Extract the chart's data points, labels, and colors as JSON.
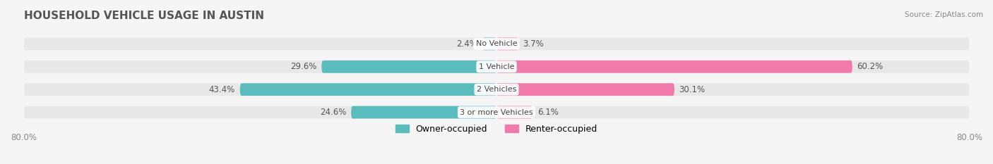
{
  "title": "HOUSEHOLD VEHICLE USAGE IN AUSTIN",
  "source": "Source: ZipAtlas.com",
  "categories": [
    "No Vehicle",
    "1 Vehicle",
    "2 Vehicles",
    "3 or more Vehicles"
  ],
  "owner_values": [
    2.4,
    29.6,
    43.4,
    24.6
  ],
  "renter_values": [
    3.7,
    60.2,
    30.1,
    6.1
  ],
  "owner_color": "#5bbcbe",
  "renter_color": "#f07baa",
  "bar_height": 0.55,
  "xlim": [
    -80.0,
    80.0
  ],
  "x_tick_labels": [
    "80.0%",
    "80.0%"
  ],
  "background_color": "#f5f5f5",
  "bar_background_color": "#e8e8e8",
  "title_fontsize": 11,
  "label_fontsize": 8.5,
  "category_fontsize": 8.0,
  "legend_fontsize": 9
}
